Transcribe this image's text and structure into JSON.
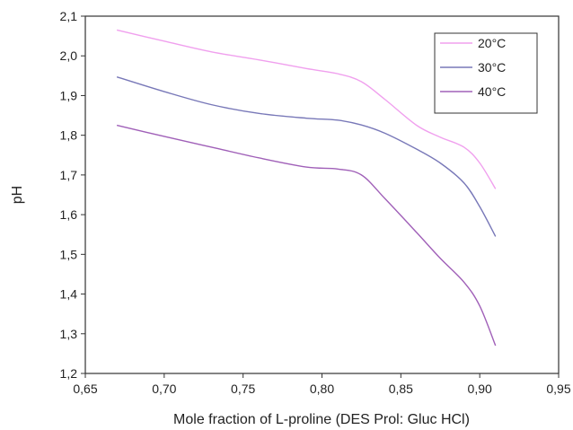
{
  "chart_data": {
    "type": "line",
    "title": "",
    "xlabel": "Mole fraction of L-proline (DES Prol: Gluc HCl)",
    "ylabel": "pH",
    "xlim": [
      0.65,
      0.95
    ],
    "ylim": [
      1.2,
      2.1
    ],
    "x_ticks": [
      0.65,
      0.7,
      0.75,
      0.8,
      0.85,
      0.9,
      0.95
    ],
    "x_tick_labels": [
      "0,65",
      "0,70",
      "0,75",
      "0,80",
      "0,85",
      "0,90",
      "0,95"
    ],
    "y_ticks": [
      1.2,
      1.3,
      1.4,
      1.5,
      1.6,
      1.7,
      1.8,
      1.9,
      2.0,
      2.1
    ],
    "y_tick_labels": [
      "1,2",
      "1,3",
      "1,4",
      "1,5",
      "1,6",
      "1,7",
      "1,8",
      "1,9",
      "2,0",
      "2,1"
    ],
    "grid": false,
    "legend_position": "top-right",
    "series": [
      {
        "name": "20°C",
        "color": "#f0a0ee",
        "x": [
          0.67,
          0.7,
          0.73,
          0.76,
          0.79,
          0.81,
          0.825,
          0.84,
          0.86,
          0.875,
          0.89,
          0.9,
          0.91
        ],
        "y": [
          2.065,
          2.037,
          2.01,
          1.99,
          1.968,
          1.955,
          1.935,
          1.89,
          1.825,
          1.795,
          1.77,
          1.73,
          1.665
        ]
      },
      {
        "name": "30°C",
        "color": "#7878b8",
        "x": [
          0.67,
          0.7,
          0.73,
          0.76,
          0.79,
          0.81,
          0.825,
          0.84,
          0.86,
          0.875,
          0.89,
          0.9,
          0.91
        ],
        "y": [
          1.947,
          1.91,
          1.877,
          1.855,
          1.843,
          1.838,
          1.826,
          1.805,
          1.765,
          1.73,
          1.68,
          1.62,
          1.545
        ]
      },
      {
        "name": "40°C",
        "color": "#a060b8",
        "x": [
          0.67,
          0.7,
          0.73,
          0.76,
          0.79,
          0.81,
          0.825,
          0.84,
          0.86,
          0.875,
          0.89,
          0.9,
          0.91
        ],
        "y": [
          1.825,
          1.797,
          1.77,
          1.743,
          1.72,
          1.715,
          1.7,
          1.64,
          1.555,
          1.49,
          1.43,
          1.37,
          1.27
        ]
      }
    ]
  }
}
